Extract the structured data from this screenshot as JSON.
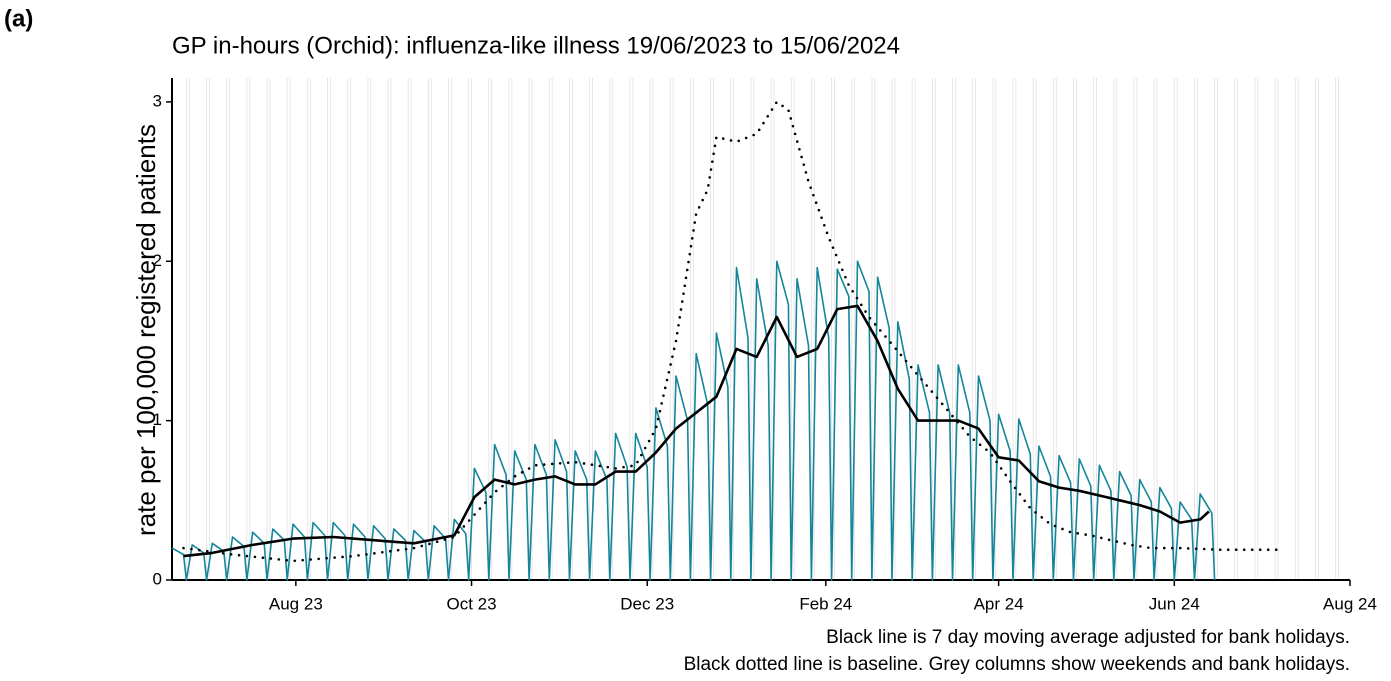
{
  "chart_data": {
    "type": "line",
    "panel_label": "(a)",
    "title": "GP in-hours (Orchid): influenza-like illness 19/06/2023 to 15/06/2024",
    "ylabel": "rate per 100,000 registered patients",
    "notes": [
      "Black line is 7 day moving average adjusted for bank holidays.",
      "Black dotted line is baseline. Grey columns show weekends and bank holidays."
    ],
    "xlim": [
      0,
      409
    ],
    "xticks": [
      {
        "value": 43,
        "label": "Aug 23"
      },
      {
        "value": 104,
        "label": "Oct 23"
      },
      {
        "value": 165,
        "label": "Dec 23"
      },
      {
        "value": 227,
        "label": "Feb 24"
      },
      {
        "value": 287,
        "label": "Apr 24"
      },
      {
        "value": 348,
        "label": "Jun 24"
      },
      {
        "value": 409,
        "label": "Aug 24"
      }
    ],
    "ylim": [
      0,
      3.15
    ],
    "yticks": [
      0,
      1,
      2,
      3
    ],
    "weekend_color": "#e4e4e4",
    "series": [
      {
        "color": "#14869a",
        "style": "solid",
        "width": 1.6,
        "x": [
          0,
          4,
          5,
          7,
          11,
          12,
          14,
          18,
          19,
          21,
          25,
          26,
          28,
          32,
          33,
          35,
          39,
          40,
          42,
          46,
          47,
          49,
          53,
          54,
          56,
          60,
          61,
          63,
          67,
          68,
          70,
          74,
          75,
          77,
          81,
          82,
          84,
          88,
          89,
          91,
          95,
          96,
          98,
          102,
          103,
          105,
          109,
          110,
          112,
          116,
          117,
          119,
          123,
          124,
          126,
          130,
          131,
          133,
          137,
          138,
          140,
          144,
          145,
          147,
          151,
          152,
          154,
          158,
          159,
          161,
          165,
          166,
          168,
          172,
          173,
          175,
          179,
          180,
          182,
          186,
          187,
          189,
          193,
          194,
          196,
          200,
          201,
          203,
          207,
          208,
          210,
          214,
          215,
          217,
          221,
          222,
          224,
          228,
          229,
          231,
          235,
          236,
          238,
          242,
          243,
          245,
          249,
          250,
          252,
          256,
          257,
          259,
          263,
          264,
          266,
          270,
          271,
          273,
          277,
          278,
          280,
          284,
          285,
          287,
          291,
          292,
          294,
          298,
          299,
          301,
          305,
          306,
          308,
          312,
          313,
          315,
          319,
          320,
          322,
          326,
          327,
          329,
          333,
          334,
          336,
          340,
          341,
          343,
          347,
          348,
          350,
          354,
          355,
          357,
          361,
          362
        ],
        "values": [
          0.2,
          0.16,
          0,
          0.22,
          0.17,
          0,
          0.23,
          0.18,
          0,
          0.27,
          0.21,
          0,
          0.3,
          0.23,
          0,
          0.32,
          0.25,
          0,
          0.35,
          0.27,
          0,
          0.36,
          0.28,
          0,
          0.36,
          0.28,
          0,
          0.35,
          0.27,
          0,
          0.34,
          0.26,
          0,
          0.32,
          0.25,
          0,
          0.31,
          0.24,
          0,
          0.34,
          0.26,
          0,
          0.38,
          0.29,
          0,
          0.7,
          0.55,
          0,
          0.85,
          0.66,
          0,
          0.81,
          0.63,
          0,
          0.85,
          0.66,
          0,
          0.88,
          0.68,
          0,
          0.81,
          0.63,
          0,
          0.81,
          0.63,
          0,
          0.92,
          0.71,
          0,
          0.92,
          0.71,
          0,
          1.08,
          0.84,
          0,
          1.28,
          1.0,
          0,
          1.42,
          1.1,
          0,
          1.55,
          1.21,
          0,
          1.96,
          1.52,
          0,
          1.89,
          1.47,
          0,
          2.0,
          1.73,
          0,
          1.89,
          1.47,
          0,
          1.96,
          1.52,
          0,
          1.95,
          1.78,
          0,
          2.0,
          1.81,
          0,
          1.9,
          1.58,
          0,
          1.62,
          1.26,
          0,
          1.35,
          1.05,
          0,
          1.35,
          1.05,
          0,
          1.35,
          1.05,
          0,
          1.28,
          1.0,
          0,
          1.04,
          0.81,
          0,
          1.01,
          0.79,
          0,
          0.84,
          0.65,
          0,
          0.78,
          0.61,
          0,
          0.76,
          0.59,
          0,
          0.72,
          0.56,
          0,
          0.68,
          0.53,
          0,
          0.63,
          0.49,
          0,
          0.58,
          0.45,
          0,
          0.49,
          0.38,
          0,
          0.54,
          0.42,
          0
        ]
      },
      {
        "color": "#000000",
        "style": "solid",
        "width": 2.6,
        "x": [
          4,
          14,
          28,
          42,
          56,
          70,
          84,
          98,
          105,
          112,
          119,
          126,
          133,
          140,
          147,
          154,
          161,
          168,
          175,
          182,
          189,
          196,
          203,
          210,
          217,
          224,
          231,
          238,
          245,
          252,
          259,
          266,
          273,
          280,
          287,
          294,
          301,
          308,
          315,
          322,
          329,
          336,
          343,
          350,
          357,
          360
        ],
        "values": [
          0.15,
          0.17,
          0.22,
          0.26,
          0.27,
          0.25,
          0.23,
          0.28,
          0.52,
          0.63,
          0.6,
          0.63,
          0.65,
          0.6,
          0.6,
          0.68,
          0.68,
          0.8,
          0.95,
          1.05,
          1.15,
          1.45,
          1.4,
          1.65,
          1.4,
          1.45,
          1.7,
          1.72,
          1.5,
          1.2,
          1.0,
          1.0,
          1.0,
          0.95,
          0.77,
          0.75,
          0.62,
          0.58,
          0.56,
          0.53,
          0.5,
          0.47,
          0.43,
          0.36,
          0.38,
          0.43
        ]
      },
      {
        "color": "#000000",
        "style": "dotted",
        "width": 2.6,
        "x": [
          4,
          21,
          42,
          63,
          84,
          98,
          112,
          119,
          126,
          140,
          154,
          161,
          168,
          175,
          182,
          186,
          189,
          196,
          203,
          210,
          214,
          221,
          228,
          235,
          242,
          249,
          256,
          263,
          270,
          277,
          284,
          291,
          298,
          305,
          312,
          319,
          326,
          333,
          340,
          350,
          364,
          385
        ],
        "values": [
          0.2,
          0.16,
          0.12,
          0.15,
          0.2,
          0.27,
          0.55,
          0.65,
          0.72,
          0.74,
          0.7,
          0.72,
          0.95,
          1.5,
          2.3,
          2.45,
          2.78,
          2.75,
          2.8,
          3.0,
          2.95,
          2.5,
          2.15,
          1.85,
          1.65,
          1.5,
          1.35,
          1.2,
          1.05,
          0.9,
          0.8,
          0.62,
          0.45,
          0.35,
          0.3,
          0.28,
          0.25,
          0.22,
          0.2,
          0.2,
          0.19,
          0.19
        ]
      }
    ]
  }
}
